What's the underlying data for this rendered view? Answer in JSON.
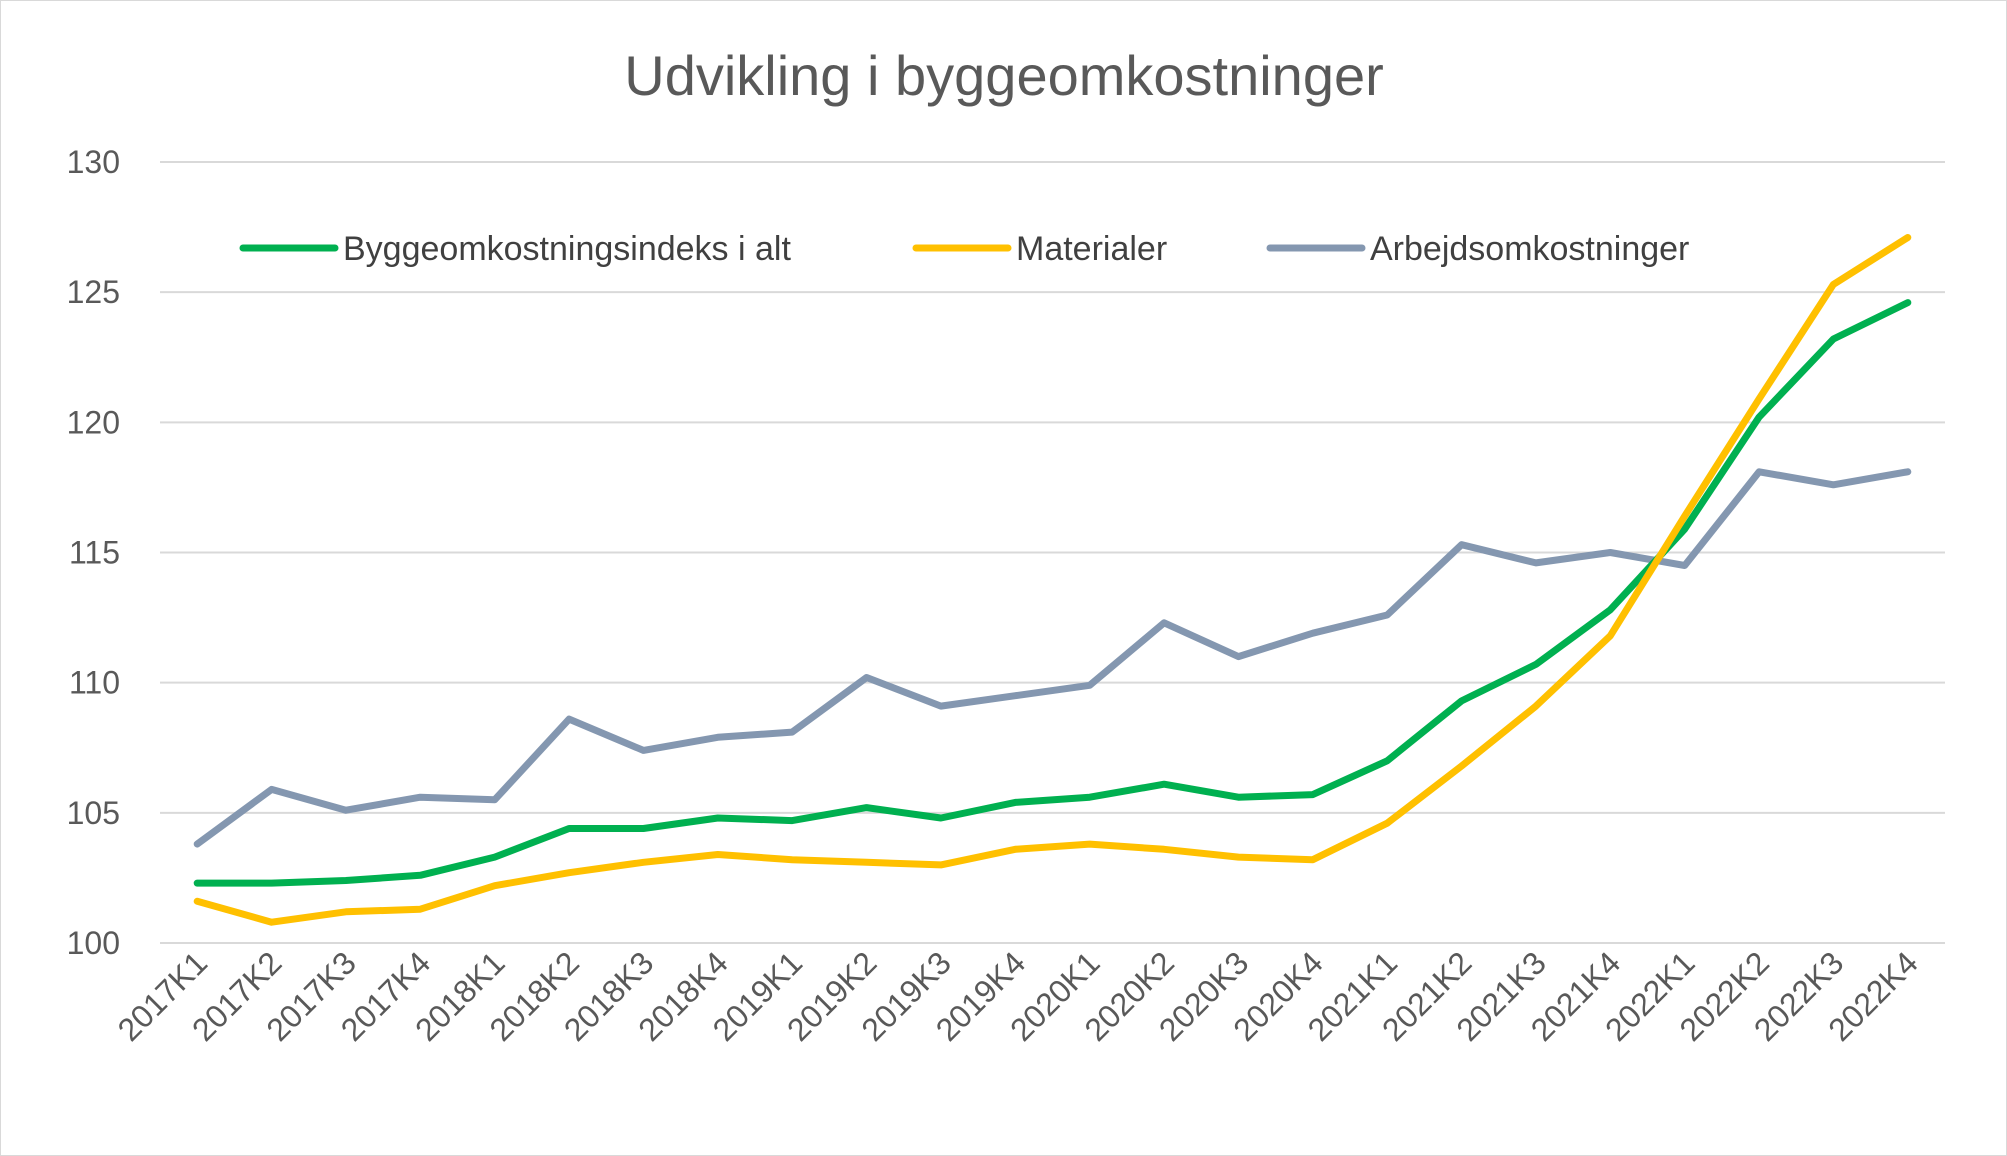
{
  "chart_data": {
    "type": "line",
    "title": "Udvikling i byggeomkostninger",
    "xlabel": "",
    "ylabel": "",
    "ylim": [
      100,
      130
    ],
    "yticks": [
      100,
      105,
      110,
      115,
      120,
      125,
      130
    ],
    "grid": true,
    "legend_position": "top",
    "categories": [
      "2017K1",
      "2017K2",
      "2017K3",
      "2017K4",
      "2018K1",
      "2018K2",
      "2018K3",
      "2018K4",
      "2019K1",
      "2019K2",
      "2019K3",
      "2019K4",
      "2020K1",
      "2020K2",
      "2020K3",
      "2020K4",
      "2021K1",
      "2021K2",
      "2021K3",
      "2021K4",
      "2022K1",
      "2022K2",
      "2022K3",
      "2022K4"
    ],
    "series": [
      {
        "name": "Byggeomkostningsindeks i alt",
        "color": "#00b050",
        "values": [
          102.3,
          102.3,
          102.4,
          102.6,
          103.3,
          104.4,
          104.4,
          104.8,
          104.7,
          105.2,
          104.8,
          105.4,
          105.6,
          106.1,
          105.6,
          105.7,
          107.0,
          109.3,
          110.7,
          112.8,
          115.9,
          120.2,
          123.2,
          124.6
        ]
      },
      {
        "name": "Materialer",
        "color": "#ffc000",
        "values": [
          101.6,
          100.8,
          101.2,
          101.3,
          102.2,
          102.7,
          103.1,
          103.4,
          103.2,
          103.1,
          103.0,
          103.6,
          103.8,
          103.6,
          103.3,
          103.2,
          104.6,
          106.8,
          109.1,
          111.8,
          116.4,
          120.9,
          125.3,
          127.1
        ]
      },
      {
        "name": "Arbejdsomkostninger",
        "color": "#8497b0",
        "values": [
          103.8,
          105.9,
          105.1,
          105.6,
          105.5,
          108.6,
          107.4,
          107.9,
          108.1,
          110.2,
          109.1,
          109.5,
          109.9,
          112.3,
          111.0,
          111.9,
          112.6,
          115.3,
          114.6,
          115.0,
          114.5,
          118.1,
          117.6,
          118.1
        ]
      }
    ]
  }
}
